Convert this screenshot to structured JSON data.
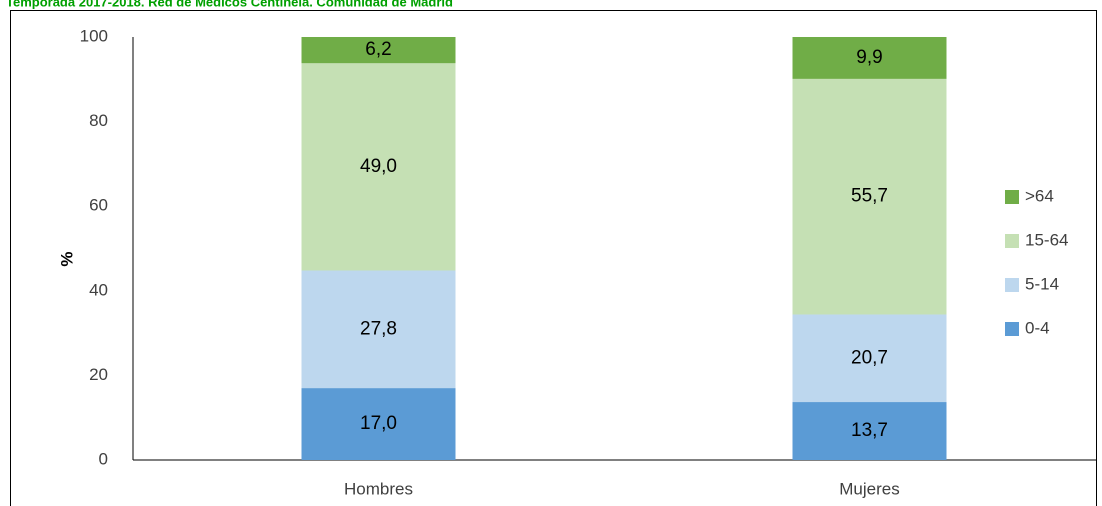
{
  "chart_data": {
    "type": "stacked_bar",
    "title": "Temporada 2017-2018. Red de Médicos Centinela. Comunidad de Madrid",
    "y_label": "%",
    "categories": [
      "Hombres",
      "Mujeres"
    ],
    "series": [
      {
        "name": "0-4",
        "color": "#5b9bd5",
        "values": [
          17.0,
          13.7
        ],
        "value_labels": [
          "17,0",
          "13,7"
        ]
      },
      {
        "name": "5-14",
        "color": "#bdd7ee",
        "values": [
          27.8,
          20.7
        ],
        "value_labels": [
          "27,8",
          "20,7"
        ]
      },
      {
        "name": "15-64",
        "color": "#c5e0b4",
        "values": [
          49.0,
          55.7
        ],
        "value_labels": [
          "49,0",
          "55,7"
        ]
      },
      {
        "name": ">64",
        "color": "#70ad47",
        "values": [
          6.2,
          9.9
        ],
        "value_labels": [
          "6,2",
          "9,9"
        ]
      }
    ],
    "ylim": [
      0,
      100
    ],
    "yticks": [
      0,
      20,
      40,
      60,
      80,
      100
    ],
    "grid": false,
    "legend": "right"
  }
}
